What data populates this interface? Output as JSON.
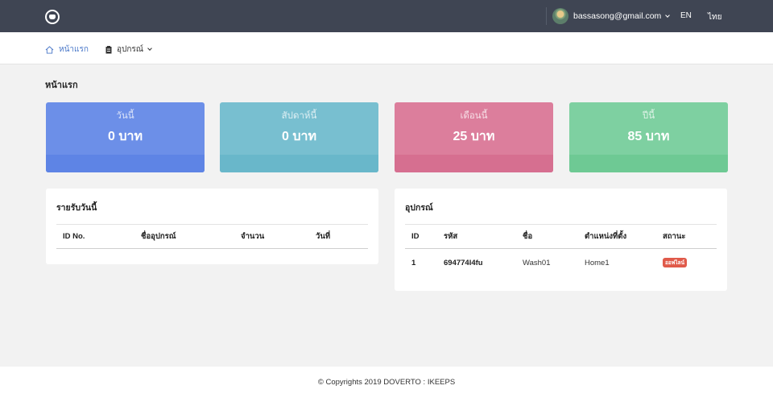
{
  "header": {
    "user_email": "bassasong@gmail.com",
    "languages": [
      "EN",
      "ไทย"
    ]
  },
  "nav": {
    "home": "หน้าแรก",
    "device": "อุปกรณ์"
  },
  "page_title": "หน้าแรก",
  "stats": [
    {
      "label": "วันนี้",
      "value": "0 บาท",
      "color": "#6c8fe8"
    },
    {
      "label": "สัปดาห์นี้",
      "value": "0 บาท",
      "color": "#78bfd0"
    },
    {
      "label": "เดือนนี้",
      "value": "25 บาท",
      "color": "#dc7e9c"
    },
    {
      "label": "ปีนี้",
      "value": "85 บาท",
      "color": "#7ed0a1"
    }
  ],
  "income_card": {
    "title": "รายรับวันนี้",
    "columns": [
      "ID No.",
      "ชื่ออุปกรณ์",
      "จำนวน",
      "วันที่"
    ],
    "rows": []
  },
  "device_card": {
    "title": "อุปกรณ์",
    "columns": [
      "ID",
      "รหัส",
      "ชื่อ",
      "ตำแหน่งที่ตั้ง",
      "สถานะ"
    ],
    "rows": [
      {
        "id": "1",
        "code": "694774l4fu",
        "name": "Wash01",
        "location": "Home1",
        "status": "ออฟไลน์"
      }
    ]
  },
  "footer": "© Copyrights 2019 DOVERTO : IKEEPS",
  "icons": {
    "logo": "app-logo-icon",
    "home": "home-icon",
    "device": "clipboard-icon",
    "dropdown": "chevron-down-icon"
  },
  "colors": {
    "topbar": "#3f4553",
    "link": "#4a78c9",
    "status_offline": "#e05a4a"
  }
}
